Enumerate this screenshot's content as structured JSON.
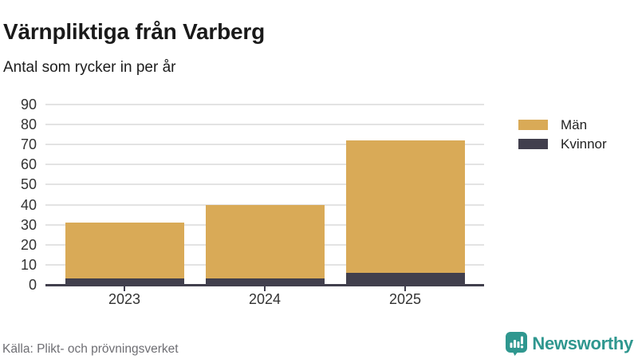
{
  "header": {
    "title": "Värnpliktiga från Varberg",
    "subtitle": "Antal som rycker in per år"
  },
  "chart_data": {
    "type": "bar",
    "stacked": true,
    "categories": [
      "2023",
      "2024",
      "2025"
    ],
    "series": [
      {
        "name": "Män",
        "color": "#d9aa57",
        "values": [
          28,
          37,
          66
        ]
      },
      {
        "name": "Kvinnor",
        "color": "#413f4d",
        "values": [
          3,
          3,
          6
        ]
      }
    ],
    "stack_order_bottom_to_top": [
      "Kvinnor",
      "Män"
    ],
    "totals": [
      31,
      40,
      72
    ],
    "title": "Värnpliktiga från Varberg",
    "subtitle": "Antal som rycker in per år",
    "xlabel": "",
    "ylabel": "",
    "ylim": [
      0,
      90
    ],
    "yticks": [
      0,
      10,
      20,
      30,
      40,
      50,
      60,
      70,
      80,
      90
    ],
    "grid": true,
    "legend_position": "right"
  },
  "footer": {
    "source": "Källa: Plikt- och prövningsverket",
    "brand": "Newsworthy"
  },
  "colors": {
    "bar_men": "#d9aa57",
    "bar_women": "#413f4d",
    "gridline": "#e3e3e3",
    "axis": "#413f4d",
    "title_text": "#1a1a1a",
    "tick_label": "#333333",
    "source_text": "#6e6e73",
    "brand_teal": "#2f978f"
  }
}
